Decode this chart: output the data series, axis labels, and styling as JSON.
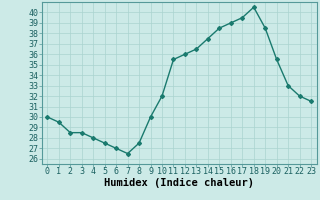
{
  "x": [
    0,
    1,
    2,
    3,
    4,
    5,
    6,
    7,
    8,
    9,
    10,
    11,
    12,
    13,
    14,
    15,
    16,
    17,
    18,
    19,
    20,
    21,
    22,
    23
  ],
  "y": [
    30.0,
    29.5,
    28.5,
    28.5,
    28.0,
    27.5,
    27.0,
    26.5,
    27.5,
    30.0,
    32.0,
    35.5,
    36.0,
    36.5,
    37.5,
    38.5,
    39.0,
    39.5,
    40.5,
    38.5,
    35.5,
    33.0,
    32.0,
    31.5
  ],
  "line_color": "#1a7a6e",
  "marker": "D",
  "marker_size": 2.0,
  "bg_color": "#cceae7",
  "grid_color": "#aad4d0",
  "xlabel": "Humidex (Indice chaleur)",
  "xlim": [
    -0.5,
    23.5
  ],
  "ylim": [
    25.5,
    41.0
  ],
  "yticks": [
    26,
    27,
    28,
    29,
    30,
    31,
    32,
    33,
    34,
    35,
    36,
    37,
    38,
    39,
    40
  ],
  "xtick_labels": [
    "0",
    "1",
    "2",
    "3",
    "4",
    "5",
    "6",
    "7",
    "8",
    "9",
    "10",
    "11",
    "12",
    "13",
    "14",
    "15",
    "16",
    "17",
    "18",
    "19",
    "20",
    "21",
    "22",
    "23"
  ],
  "xlabel_fontsize": 7.5,
  "tick_fontsize": 6.0,
  "line_width": 1.0
}
